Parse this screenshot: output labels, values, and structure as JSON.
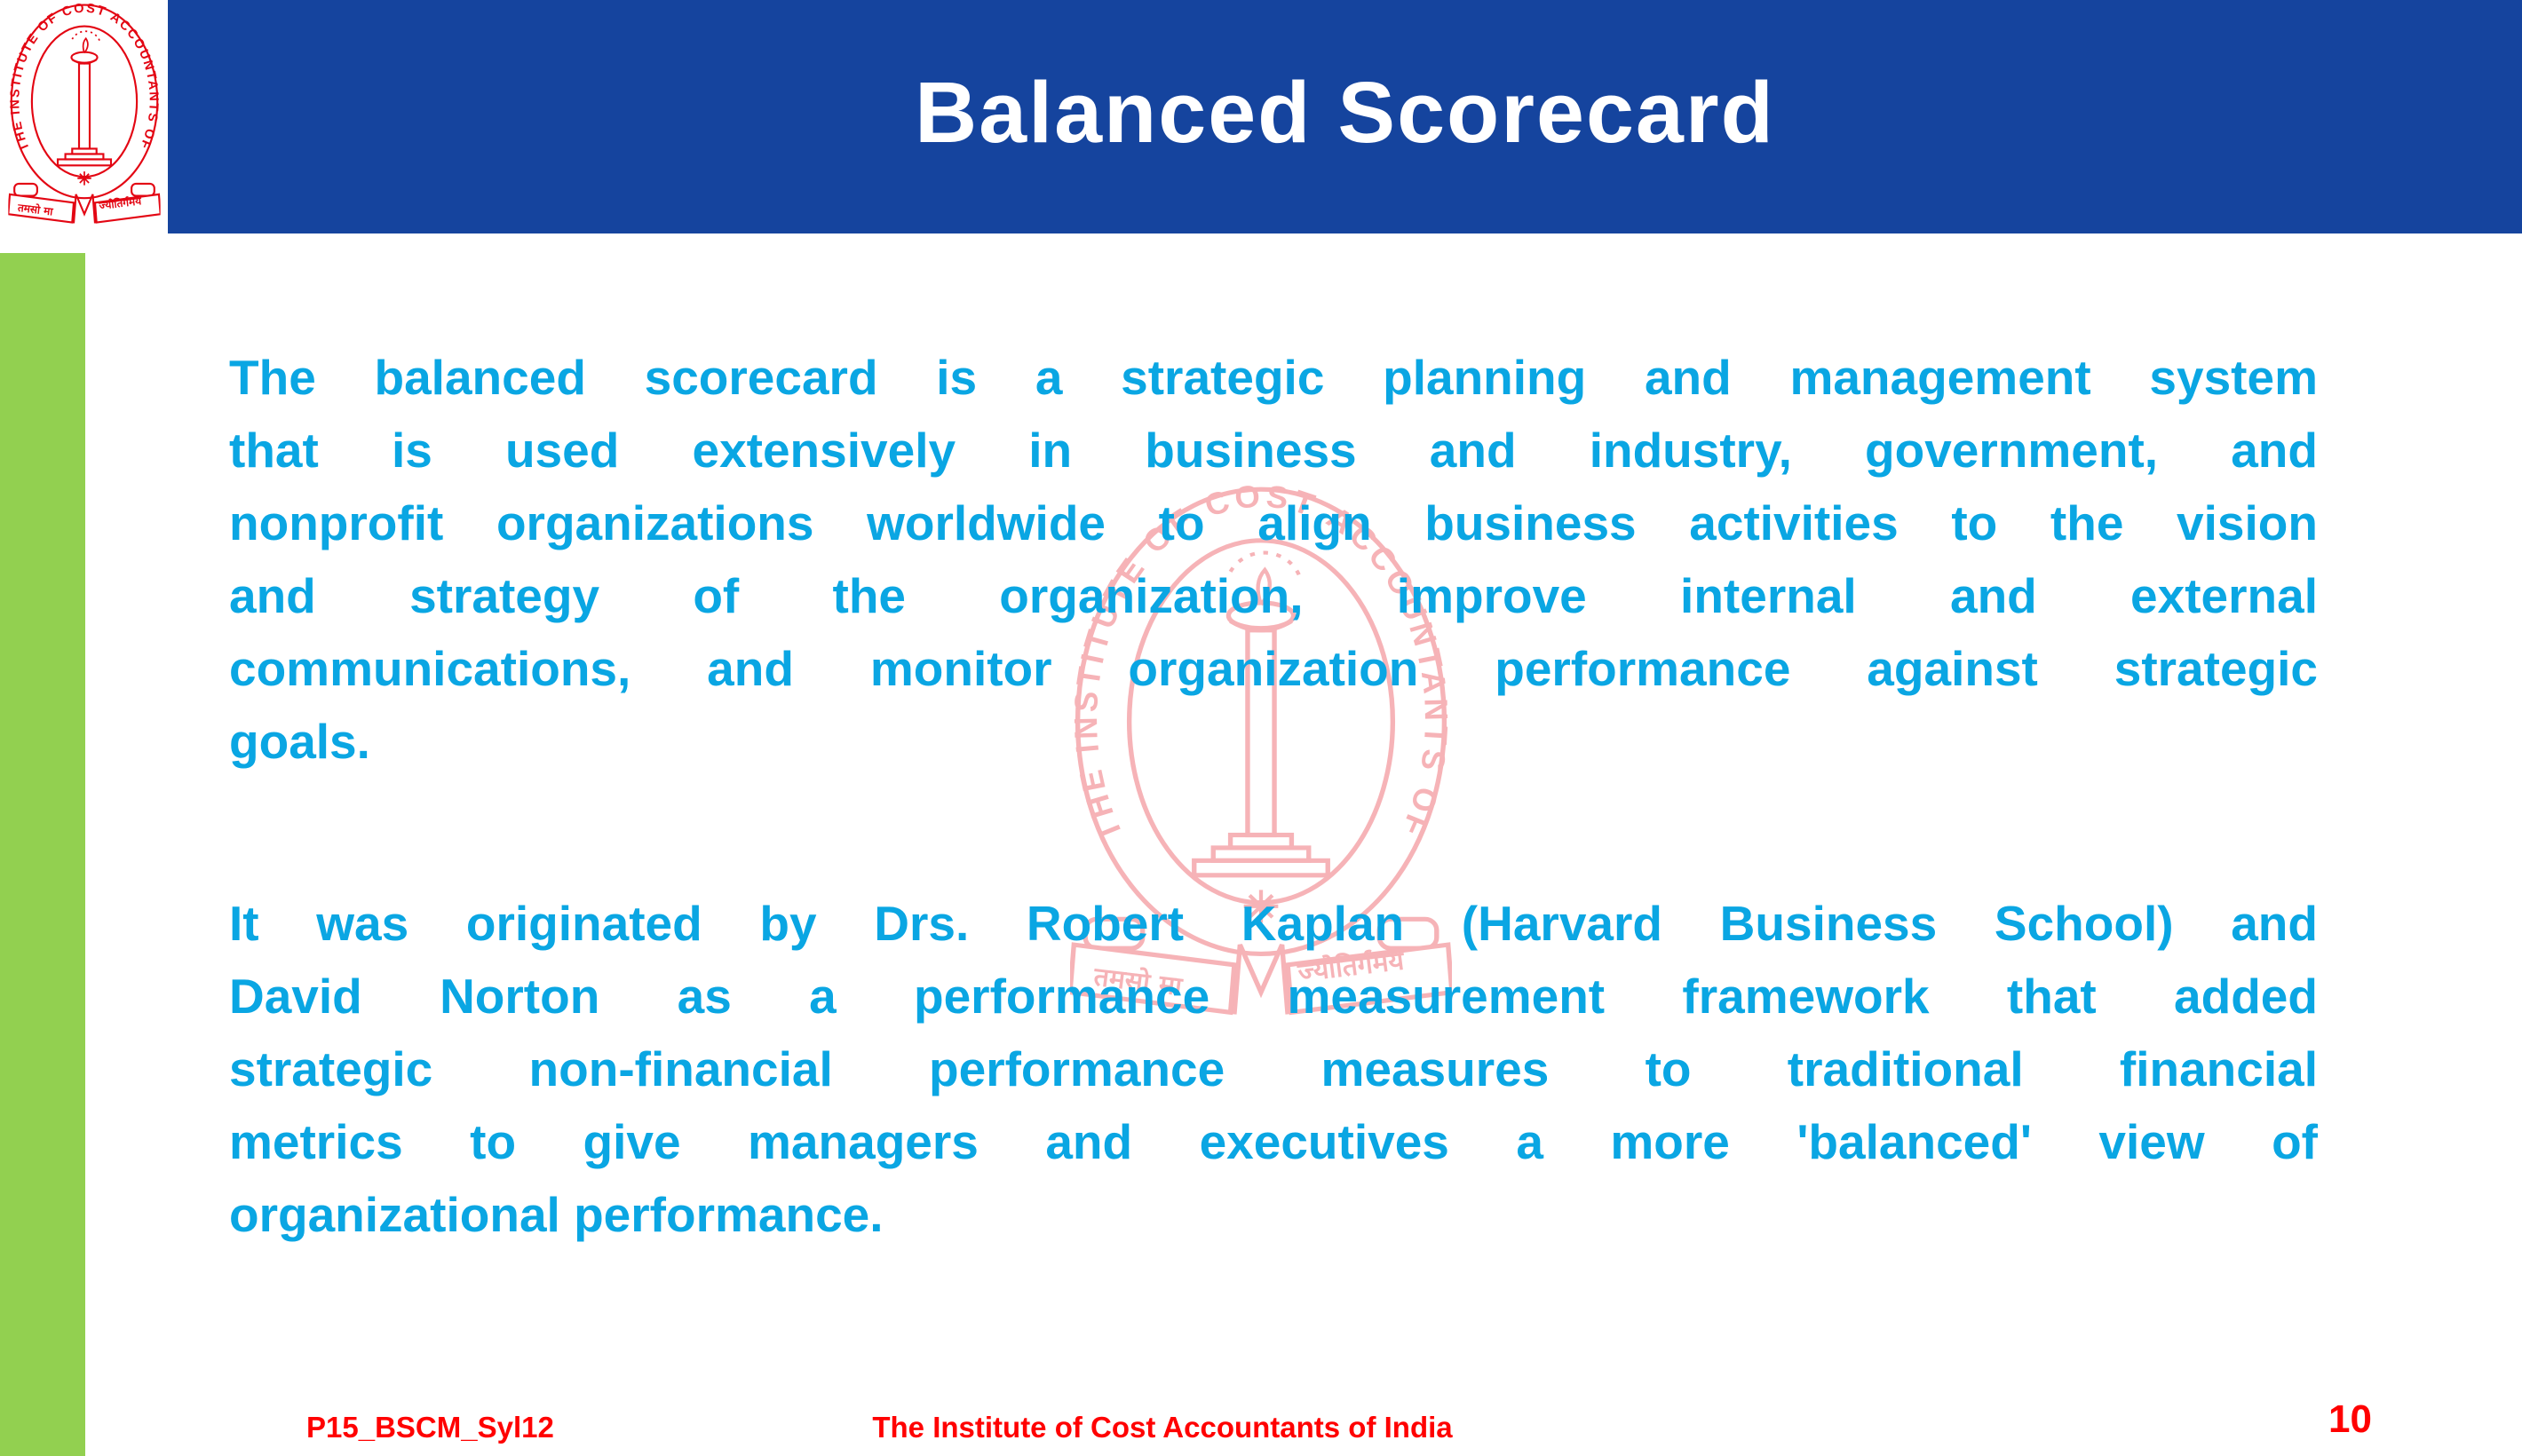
{
  "header": {
    "title": "Balanced Scorecard"
  },
  "logo": {
    "ring_text": "THE INSTITUTE OF COST ACCOUNTANTS OF INDIA",
    "motto_left": "तमसो मा",
    "motto_right": "ज्योतिर्गमय"
  },
  "body": {
    "paragraph1": {
      "lines": [
        "The balanced scorecard is a strategic planning and management system",
        "that is used extensively in business and industry, government, and",
        "nonprofit organizations worldwide to align business activities to the vision",
        "and strategy of the organization, improve internal and external",
        "communications, and monitor organization performance against strategic",
        "goals."
      ]
    },
    "paragraph2": {
      "lines": [
        "It was originated by Drs. Robert Kaplan (Harvard Business School) and",
        "David Norton as a performance measurement framework that added",
        "strategic non-financial performance measures to traditional financial",
        "metrics to give managers and executives a more 'balanced' view of",
        "organizational performance."
      ]
    }
  },
  "footer": {
    "left_code": "P15_BSCM_Syl12",
    "center_text": "The Institute of Cost Accountants of India",
    "page_number": "10"
  },
  "colors": {
    "banner_blue": "#15449E",
    "body_cyan": "#0AA6E3",
    "stripe_green": "#92D050",
    "footer_red": "#FF0000",
    "seal_red": "#E30613",
    "watermark_pink": "#F5B5B8"
  }
}
